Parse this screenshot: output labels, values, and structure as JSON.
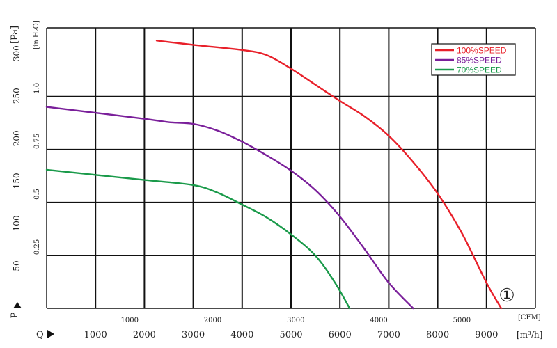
{
  "chart_data": {
    "type": "line",
    "title": "",
    "marker": "①",
    "y_pa": {
      "name": "P",
      "unit": "[Pa]",
      "ticks": [
        50,
        100,
        150,
        200,
        250,
        300
      ],
      "range": [
        0,
        330
      ]
    },
    "y_inh2o": {
      "unit": "[in H₂O]",
      "ticks": [
        "0.25",
        "0.5",
        "0.75",
        "1.0"
      ],
      "tick_values": [
        0.25,
        0.5,
        0.75,
        1.0
      ]
    },
    "x_m3h": {
      "name": "Q",
      "unit": "[m³/h]",
      "ticks": [
        1000,
        2000,
        3000,
        4000,
        5000,
        6000,
        7000,
        8000,
        9000
      ],
      "range": [
        0,
        10000
      ]
    },
    "x_cfm": {
      "unit": "[CFM]",
      "ticks": [
        1000,
        2000,
        3000,
        4000,
        5000
      ]
    },
    "grid": true,
    "legend_position": "top-right",
    "series": [
      {
        "name": "100%SPEED",
        "color": "#e8202a",
        "points": [
          [
            2250,
            315
          ],
          [
            3000,
            310
          ],
          [
            4000,
            304
          ],
          [
            4500,
            298
          ],
          [
            5000,
            282
          ],
          [
            5500,
            263
          ],
          [
            6000,
            244
          ],
          [
            6500,
            226
          ],
          [
            7000,
            203
          ],
          [
            7500,
            172
          ],
          [
            8000,
            135
          ],
          [
            8500,
            88
          ],
          [
            9000,
            30
          ],
          [
            9300,
            0
          ]
        ]
      },
      {
        "name": "85%SPEED",
        "color": "#7a1f9a",
        "points": [
          [
            0,
            237
          ],
          [
            1000,
            230
          ],
          [
            2000,
            223
          ],
          [
            2500,
            219
          ],
          [
            3000,
            217
          ],
          [
            3500,
            209
          ],
          [
            4000,
            196
          ],
          [
            4500,
            180
          ],
          [
            5000,
            162
          ],
          [
            5500,
            139
          ],
          [
            6000,
            108
          ],
          [
            6500,
            70
          ],
          [
            7000,
            30
          ],
          [
            7500,
            0
          ]
        ]
      },
      {
        "name": "70%SPEED",
        "color": "#1a9a4a",
        "points": [
          [
            0,
            163
          ],
          [
            1000,
            157
          ],
          [
            2000,
            151
          ],
          [
            3000,
            145
          ],
          [
            3500,
            136
          ],
          [
            4000,
            122
          ],
          [
            4500,
            107
          ],
          [
            5000,
            87
          ],
          [
            5500,
            62
          ],
          [
            5900,
            30
          ],
          [
            6200,
            0
          ]
        ]
      }
    ]
  }
}
